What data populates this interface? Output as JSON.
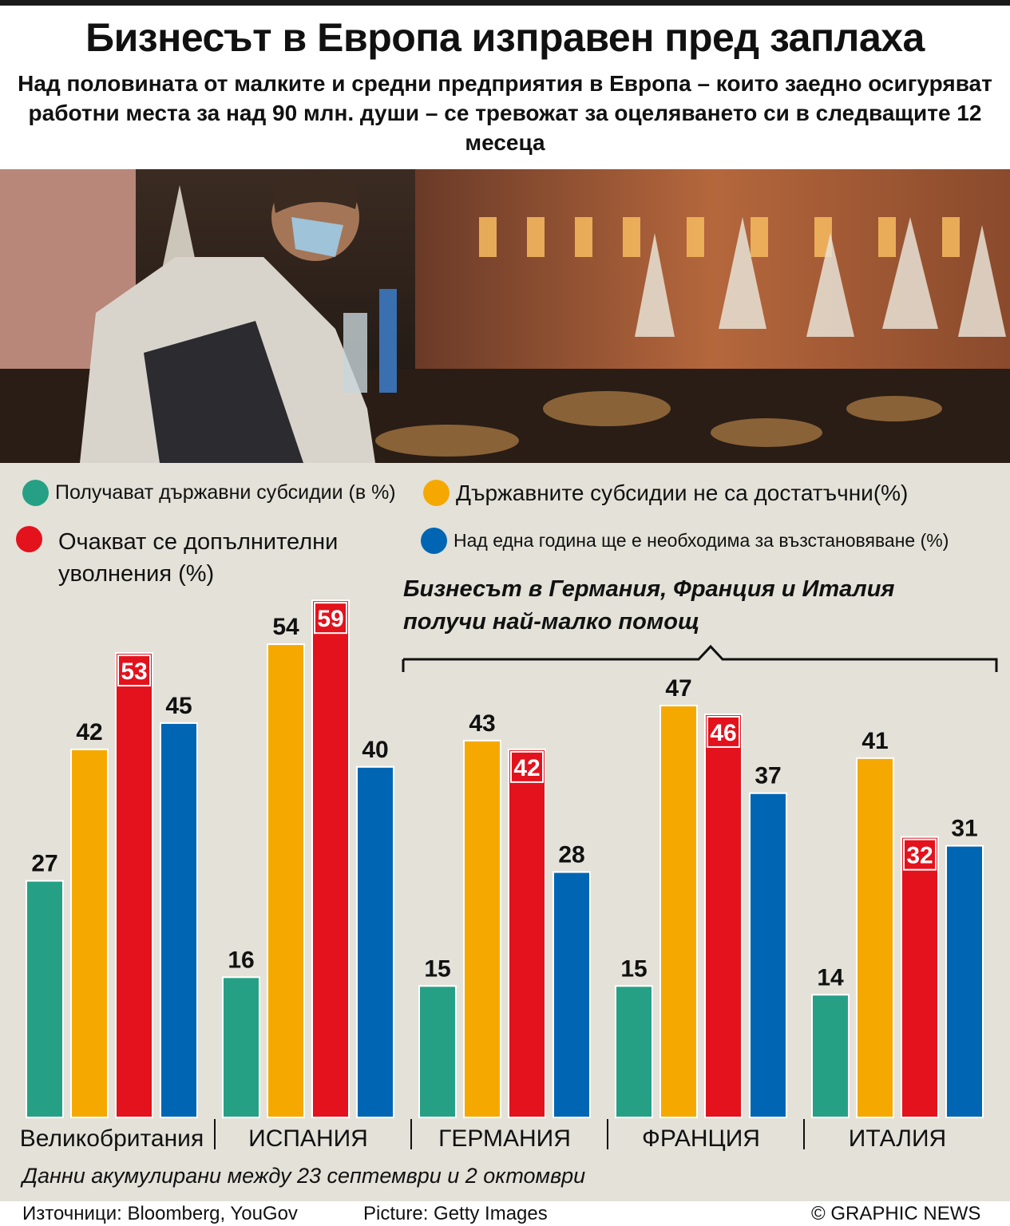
{
  "header": {
    "title": "Бизнесът в Европа изправен пред заплаха",
    "subtitle": "Над половината от малките и средни предприятия в Европа – които заедно осигуряват работни места за над 90 млн. души – се тревожат за оцеляването си в следващите 12 месеца"
  },
  "legend": [
    {
      "label": "Получават държавни субсидии (в %)",
      "color": "#26a085"
    },
    {
      "label": "Държавните субсидии не са достатъчни(%)",
      "color": "#f5a900"
    },
    {
      "label": "Очакват се допълнителни уволнения (%)",
      "color": "#e3121c"
    },
    {
      "label": "Над една година ще е необходима за възстановяване (%)",
      "color": "#0066b3"
    }
  ],
  "annotation": "Бизнесът в Германия, Франция и Италия получи най-малко помощ",
  "chart_data": {
    "type": "bar",
    "title": "Бизнесът в Европа изправен пред заплаха",
    "categories": [
      "Великобритания",
      "ИСПАНИЯ",
      "ГЕРМАНИЯ",
      "ФРАНЦИЯ",
      "ИТАЛИЯ"
    ],
    "series": [
      {
        "name": "Получават държавни субсидии (в %)",
        "color": "#26a085",
        "values": [
          27,
          16,
          15,
          15,
          14
        ]
      },
      {
        "name": "Държавните субсидии не са достатъчни(%)",
        "color": "#f5a900",
        "values": [
          42,
          54,
          43,
          47,
          41
        ]
      },
      {
        "name": "Очакват се допълнителни уволнения (%)",
        "color": "#e3121c",
        "values": [
          53,
          59,
          42,
          46,
          32
        ]
      },
      {
        "name": "Над една година ще е необходима за възстановяване (%)",
        "color": "#0066b3",
        "values": [
          45,
          40,
          28,
          37,
          31
        ]
      }
    ],
    "ylim": [
      0,
      60
    ],
    "grid": false,
    "legend": "top"
  },
  "note": "Данни акумулирани между 23 септември и 2 октомври",
  "footer": {
    "sources": "Източници: Bloomberg, YouGov",
    "picture": "Picture: Getty Images",
    "credit": "© GRAPHIC NEWS"
  }
}
